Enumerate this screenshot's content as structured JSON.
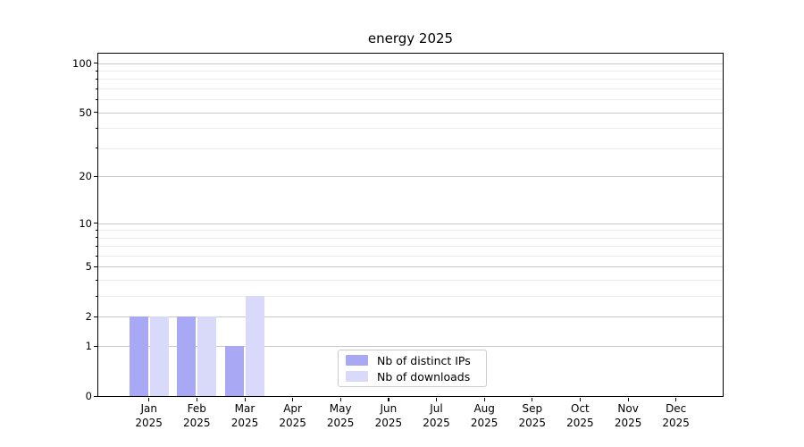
{
  "chart_data": {
    "type": "bar",
    "title": "energy 2025",
    "categories": [
      {
        "month": "Jan",
        "year": "2025"
      },
      {
        "month": "Feb",
        "year": "2025"
      },
      {
        "month": "Mar",
        "year": "2025"
      },
      {
        "month": "Apr",
        "year": "2025"
      },
      {
        "month": "May",
        "year": "2025"
      },
      {
        "month": "Jun",
        "year": "2025"
      },
      {
        "month": "Jul",
        "year": "2025"
      },
      {
        "month": "Aug",
        "year": "2025"
      },
      {
        "month": "Sep",
        "year": "2025"
      },
      {
        "month": "Oct",
        "year": "2025"
      },
      {
        "month": "Nov",
        "year": "2025"
      },
      {
        "month": "Dec",
        "year": "2025"
      }
    ],
    "series": [
      {
        "name": "Nb of distinct IPs",
        "color": "#a8a8f4",
        "values": [
          2,
          2,
          1,
          0,
          0,
          0,
          0,
          0,
          0,
          0,
          0,
          0
        ]
      },
      {
        "name": "Nb of downloads",
        "color": "#d9d9f9",
        "values": [
          2,
          2,
          3,
          0,
          0,
          0,
          0,
          0,
          0,
          0,
          0,
          0
        ]
      }
    ],
    "y_axis": {
      "scale": "log1p",
      "major_ticks": [
        0,
        1,
        2,
        5,
        10,
        20,
        50,
        100
      ],
      "minor_ticks": [
        3,
        4,
        6,
        7,
        8,
        9,
        30,
        40,
        60,
        70,
        80,
        90
      ],
      "ylim": [
        0,
        115
      ],
      "grid_major_color": "#c9c9c9",
      "grid_minor_color": "#ececec"
    },
    "legend": {
      "position": "lower-center-inside",
      "entries": [
        "Nb of distinct IPs",
        "Nb of downloads"
      ]
    },
    "grid": "on"
  }
}
